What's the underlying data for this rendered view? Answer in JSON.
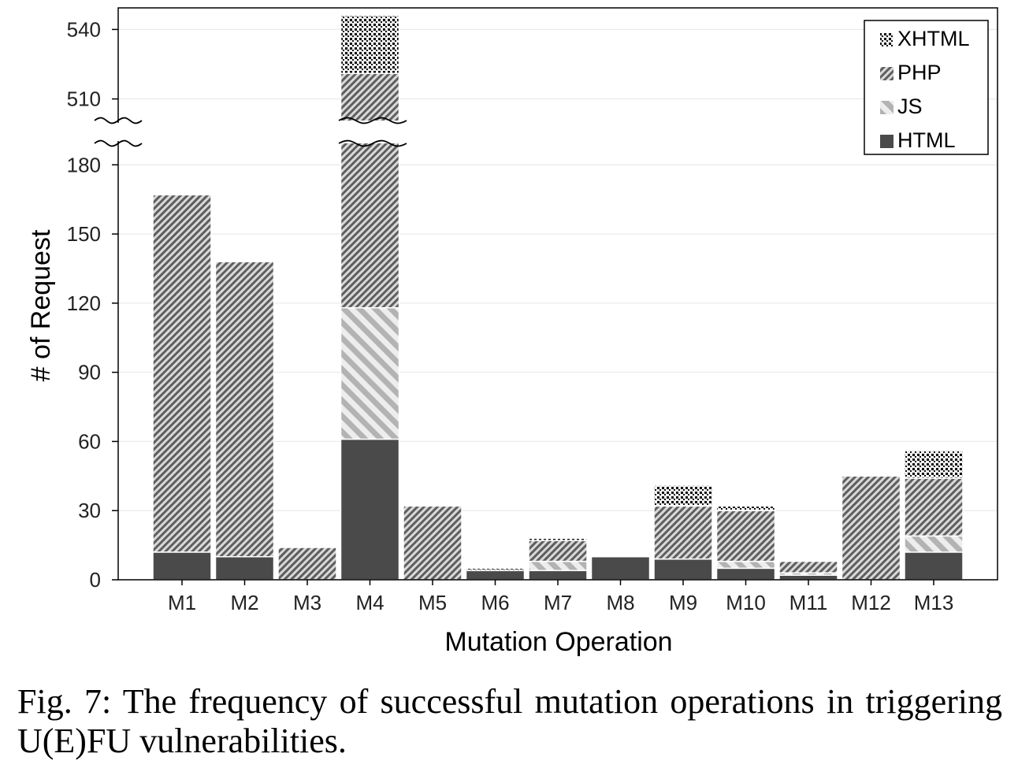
{
  "caption": "Fig. 7: The frequency of successful mutation operations in triggering U(E)FU vulnerabilities.",
  "chart_data": {
    "type": "bar",
    "stacked": true,
    "xlabel": "Mutation Operation",
    "ylabel": "# of Request",
    "categories": [
      "M1",
      "M2",
      "M3",
      "M4",
      "M5",
      "M6",
      "M7",
      "M8",
      "M9",
      "M10",
      "M11",
      "M12",
      "M13"
    ],
    "series": [
      {
        "name": "HTML",
        "color": "#4a4a4a",
        "pattern": "solid",
        "values": [
          12,
          10,
          0,
          61,
          0,
          4,
          4,
          10,
          9,
          5,
          2,
          0,
          12
        ]
      },
      {
        "name": "JS",
        "color": "#bbbbbb",
        "pattern": "wide-diagonal",
        "values": [
          0,
          0,
          0,
          57,
          0,
          0,
          4,
          0,
          0,
          3,
          1,
          0,
          7
        ]
      },
      {
        "name": "PHP",
        "color": "#666666",
        "pattern": "dense-diagonal",
        "values": [
          155,
          128,
          14,
          403,
          32,
          0,
          9,
          0,
          23,
          22,
          5,
          45,
          25
        ]
      },
      {
        "name": "XHTML",
        "color": "#111111",
        "pattern": "dots",
        "values": [
          0,
          0,
          0,
          25,
          0,
          1,
          1,
          0,
          9,
          2,
          0,
          0,
          12
        ]
      }
    ],
    "y_ticks": [
      0,
      30,
      60,
      90,
      120,
      150,
      180,
      510,
      540
    ],
    "axis_break": [
      190,
      500
    ],
    "ylim": [
      0,
      550
    ],
    "grid": true,
    "legend_position": "top-right",
    "legend_order": [
      "XHTML",
      "PHP",
      "JS",
      "HTML"
    ]
  }
}
